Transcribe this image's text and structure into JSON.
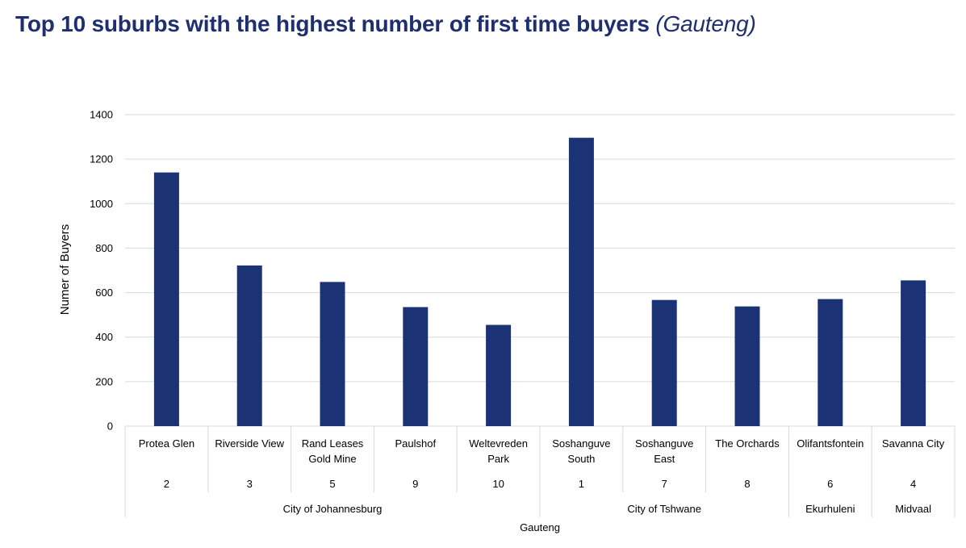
{
  "title": "Top 10 suburbs with the highest number of first time buyers",
  "subtitle": "(Gauteng)",
  "colors": {
    "bar": "#1b3275",
    "grid": "#d9d9d9",
    "title": "#1f2e6e"
  },
  "chart_data": {
    "type": "bar",
    "title": "Top 10 suburbs with the highest number of first time buyers (Gauteng)",
    "ylabel": "Numer of Buyers",
    "ylim": [
      0,
      1400
    ],
    "yticks": [
      0,
      200,
      400,
      600,
      800,
      1000,
      1200,
      1400
    ],
    "categories": [
      {
        "lines": [
          "Protea Glen"
        ],
        "rank": "2",
        "value": 1140
      },
      {
        "lines": [
          "Riverside View"
        ],
        "rank": "3",
        "value": 722
      },
      {
        "lines": [
          "Rand Leases",
          "Gold Mine"
        ],
        "rank": "5",
        "value": 648
      },
      {
        "lines": [
          "Paulshof"
        ],
        "rank": "9",
        "value": 535
      },
      {
        "lines": [
          "Weltevreden",
          "Park"
        ],
        "rank": "10",
        "value": 455
      },
      {
        "lines": [
          "Soshanguve",
          "South"
        ],
        "rank": "1",
        "value": 1296
      },
      {
        "lines": [
          "Soshanguve",
          "East"
        ],
        "rank": "7",
        "value": 567
      },
      {
        "lines": [
          "The Orchards"
        ],
        "rank": "8",
        "value": 538
      },
      {
        "lines": [
          "Olifantsfontein"
        ],
        "rank": "6",
        "value": 571
      },
      {
        "lines": [
          "Savanna City"
        ],
        "rank": "4",
        "value": 655
      }
    ],
    "groups": [
      {
        "name": "City of Johannesburg",
        "start": 0,
        "count": 5
      },
      {
        "name": "City of Tshwane",
        "start": 5,
        "count": 3
      },
      {
        "name": "Ekurhuleni",
        "start": 8,
        "count": 1
      },
      {
        "name": "Midvaal",
        "start": 9,
        "count": 1
      }
    ],
    "region": "Gauteng"
  }
}
